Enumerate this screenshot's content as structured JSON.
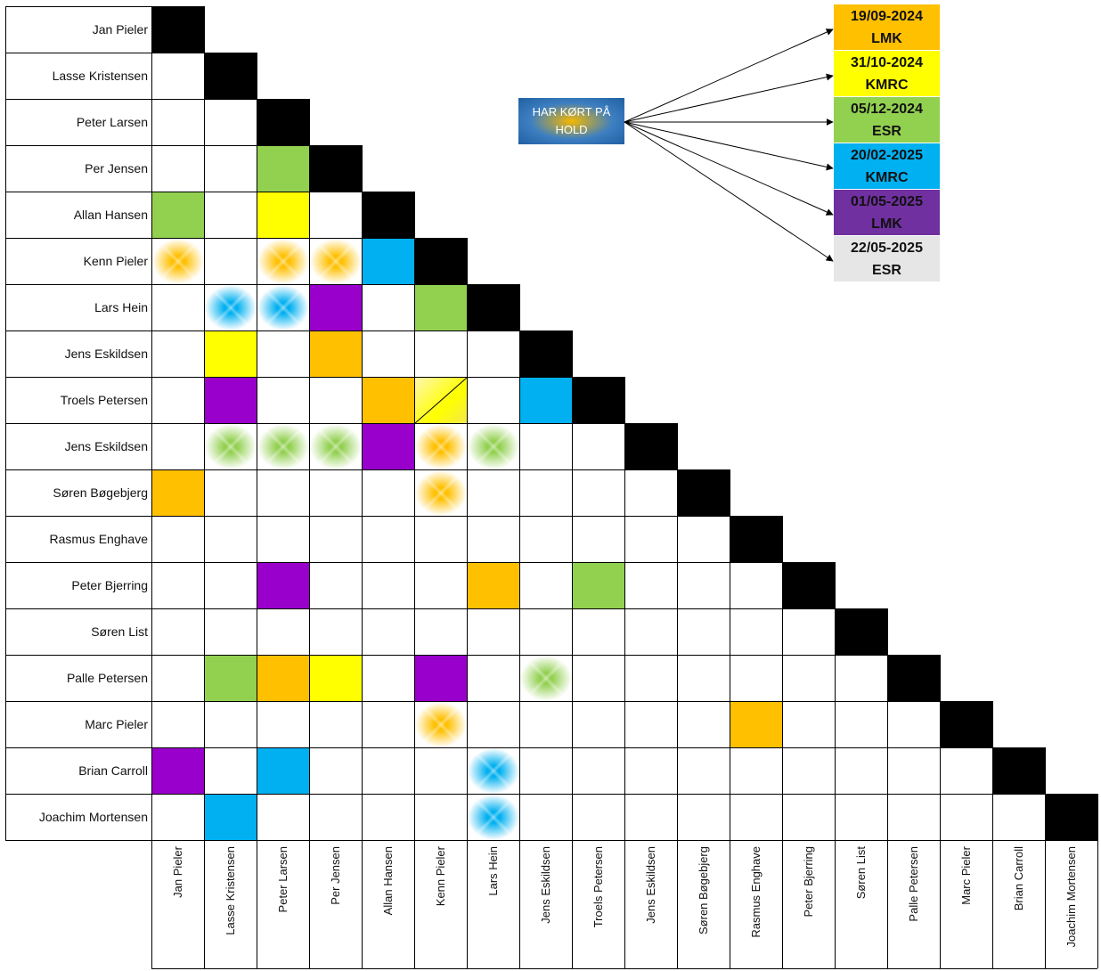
{
  "players": [
    "Jan Pieler",
    "Lasse Kristensen",
    "Peter Larsen",
    "Per Jensen",
    "Allan Hansen",
    "Kenn Pieler",
    "Lars Hein",
    "Jens Eskildsen",
    "Troels Petersen",
    "Jens Eskildsen",
    "Søren Bøgebjerg",
    "Rasmus Enghave",
    "Peter Bjerring",
    "Søren List",
    "Palle Petersen",
    "Marc Pieler",
    "Brian Carroll",
    "Joachim Mortensen"
  ],
  "hold_label": "HAR KØRT PÅ HOLD",
  "events": [
    {
      "date": "19/09-2024",
      "venue": "LMK",
      "color": "#FFC000"
    },
    {
      "date": "31/10-2024",
      "venue": "KMRC",
      "color": "#FFFF00"
    },
    {
      "date": "05/12-2024",
      "venue": "ESR",
      "color": "#92D050"
    },
    {
      "date": "20/02-2025",
      "venue": "KMRC",
      "color": "#00B0F0"
    },
    {
      "date": "01/05-2025",
      "venue": "LMK",
      "color": "#7030A0"
    },
    {
      "date": "22/05-2025",
      "venue": "ESR",
      "color": "#E7E6E6"
    }
  ],
  "colors": {
    "diagonal": "#000000",
    "orange": "#FFC000",
    "yellow": "#FFFF00",
    "green": "#92D050",
    "blue": "#00B0F0",
    "purple": "#9900CC",
    "grid": "#000000"
  },
  "pairings": [
    {
      "row": 3,
      "col": 2,
      "fill": "green",
      "style": "solid"
    },
    {
      "row": 4,
      "col": 0,
      "fill": "green",
      "style": "solid"
    },
    {
      "row": 4,
      "col": 2,
      "fill": "yellow",
      "style": "solid"
    },
    {
      "row": 5,
      "col": 0,
      "fill": "orange",
      "style": "faded"
    },
    {
      "row": 5,
      "col": 2,
      "fill": "orange",
      "style": "faded"
    },
    {
      "row": 5,
      "col": 3,
      "fill": "orange",
      "style": "faded"
    },
    {
      "row": 5,
      "col": 4,
      "fill": "blue",
      "style": "solid"
    },
    {
      "row": 6,
      "col": 1,
      "fill": "blue",
      "style": "faded"
    },
    {
      "row": 6,
      "col": 2,
      "fill": "blue",
      "style": "faded"
    },
    {
      "row": 6,
      "col": 3,
      "fill": "purple",
      "style": "solid"
    },
    {
      "row": 6,
      "col": 5,
      "fill": "green",
      "style": "solid"
    },
    {
      "row": 7,
      "col": 1,
      "fill": "yellow",
      "style": "solid"
    },
    {
      "row": 7,
      "col": 3,
      "fill": "orange",
      "style": "solid"
    },
    {
      "row": 8,
      "col": 1,
      "fill": "purple",
      "style": "solid"
    },
    {
      "row": 8,
      "col": 4,
      "fill": "orange",
      "style": "solid"
    },
    {
      "row": 8,
      "col": 5,
      "fill": "yellow",
      "style": "split"
    },
    {
      "row": 8,
      "col": 7,
      "fill": "blue",
      "style": "solid"
    },
    {
      "row": 9,
      "col": 1,
      "fill": "green",
      "style": "faded"
    },
    {
      "row": 9,
      "col": 2,
      "fill": "green",
      "style": "faded"
    },
    {
      "row": 9,
      "col": 3,
      "fill": "green",
      "style": "faded"
    },
    {
      "row": 9,
      "col": 4,
      "fill": "purple",
      "style": "solid"
    },
    {
      "row": 9,
      "col": 5,
      "fill": "orange",
      "style": "faded"
    },
    {
      "row": 9,
      "col": 6,
      "fill": "green",
      "style": "faded"
    },
    {
      "row": 10,
      "col": 0,
      "fill": "orange",
      "style": "solid"
    },
    {
      "row": 10,
      "col": 5,
      "fill": "orange",
      "style": "faded"
    },
    {
      "row": 12,
      "col": 2,
      "fill": "purple",
      "style": "solid"
    },
    {
      "row": 12,
      "col": 6,
      "fill": "orange",
      "style": "solid"
    },
    {
      "row": 12,
      "col": 8,
      "fill": "green",
      "style": "solid"
    },
    {
      "row": 14,
      "col": 1,
      "fill": "green",
      "style": "solid"
    },
    {
      "row": 14,
      "col": 2,
      "fill": "orange",
      "style": "solid"
    },
    {
      "row": 14,
      "col": 3,
      "fill": "yellow",
      "style": "solid"
    },
    {
      "row": 14,
      "col": 5,
      "fill": "purple",
      "style": "solid"
    },
    {
      "row": 14,
      "col": 7,
      "fill": "green",
      "style": "faded"
    },
    {
      "row": 15,
      "col": 5,
      "fill": "orange",
      "style": "faded"
    },
    {
      "row": 15,
      "col": 11,
      "fill": "orange",
      "style": "solid"
    },
    {
      "row": 16,
      "col": 0,
      "fill": "purple",
      "style": "solid"
    },
    {
      "row": 16,
      "col": 2,
      "fill": "blue",
      "style": "solid"
    },
    {
      "row": 16,
      "col": 6,
      "fill": "blue",
      "style": "faded"
    },
    {
      "row": 17,
      "col": 1,
      "fill": "blue",
      "style": "solid"
    },
    {
      "row": 17,
      "col": 6,
      "fill": "blue",
      "style": "faded"
    }
  ]
}
